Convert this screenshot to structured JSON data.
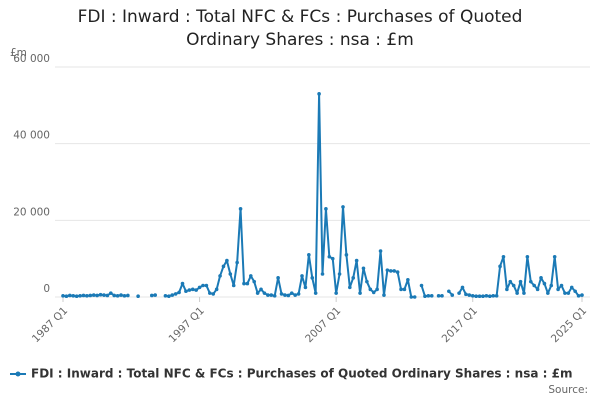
{
  "chart_data": {
    "type": "line",
    "title": "FDI : Inward : Total NFC & FCs : Purchases of Quoted Ordinary Shares : nsa : £m",
    "y_unit": "£m",
    "source": "Source:",
    "categories": [
      "1987 Q1",
      null,
      null,
      null,
      null,
      null,
      null,
      null,
      null,
      null,
      null,
      null,
      null,
      null,
      null,
      null,
      null,
      null,
      null,
      null,
      null,
      null,
      null,
      null,
      null,
      null,
      null,
      null,
      null,
      null,
      null,
      null,
      null,
      null,
      null,
      null,
      null,
      null,
      null,
      null,
      "1997 Q1",
      null,
      null,
      null,
      null,
      null,
      null,
      null,
      null,
      null,
      null,
      null,
      null,
      null,
      null,
      null,
      null,
      null,
      null,
      null,
      null,
      null,
      null,
      null,
      null,
      null,
      null,
      null,
      null,
      null,
      null,
      null,
      null,
      null,
      null,
      null,
      null,
      null,
      null,
      null,
      "2007 Q1",
      null,
      null,
      null,
      null,
      null,
      null,
      null,
      null,
      null,
      null,
      null,
      null,
      null,
      null,
      null,
      null,
      null,
      null,
      null,
      null,
      null,
      null,
      null,
      null,
      null,
      null,
      null,
      null,
      null,
      null,
      null,
      null,
      null,
      null,
      null,
      null,
      null,
      null,
      null,
      "2017 Q1",
      null,
      null,
      null,
      null,
      null,
      null,
      null,
      null,
      null,
      null,
      null,
      null,
      null,
      null,
      null,
      null,
      null,
      null,
      null,
      null,
      null,
      null,
      null,
      null,
      null,
      null,
      null,
      null,
      null,
      null,
      null,
      "2025 Q1"
    ],
    "series": [
      {
        "name": "FDI : Inward : Total NFC & FCs : Purchases of Quoted Ordinary Shares : nsa : £m",
        "color": "#1b7ab6",
        "values": [
          300,
          200,
          400,
          300,
          200,
          300,
          400,
          300,
          400,
          500,
          400,
          600,
          500,
          400,
          1000,
          400,
          300,
          500,
          300,
          400,
          null,
          null,
          200,
          null,
          null,
          null,
          400,
          500,
          null,
          null,
          300,
          200,
          500,
          800,
          1200,
          3500,
          1500,
          1800,
          2000,
          1800,
          2500,
          3000,
          3000,
          1000,
          800,
          2000,
          5500,
          8000,
          9500,
          6000,
          3000,
          9000,
          23000,
          3500,
          3500,
          5500,
          4000,
          1000,
          2000,
          1000,
          500,
          500,
          300,
          5000,
          800,
          500,
          400,
          1000,
          500,
          800,
          5500,
          2500,
          11000,
          5000,
          1000,
          53000,
          6000,
          23000,
          10500,
          10000,
          1000,
          6000,
          23500,
          11000,
          2500,
          5000,
          9500,
          1000,
          7500,
          4000,
          2000,
          1200,
          2000,
          12000,
          500,
          7000,
          6800,
          6800,
          6500,
          2000,
          2000,
          4500,
          0,
          0,
          null,
          3000,
          200,
          300,
          300,
          null,
          300,
          300,
          null,
          1500,
          500,
          null,
          1000,
          2500,
          700,
          500,
          300,
          200,
          200,
          200,
          300,
          200,
          300,
          300,
          8000,
          10500,
          2000,
          4000,
          3000,
          1000,
          4000,
          1000,
          10500,
          4000,
          3000,
          2000,
          5000,
          3500,
          1000,
          3000,
          10500,
          2000,
          3000,
          1000,
          1000,
          2500,
          1500,
          300,
          500
        ]
      }
    ],
    "ylim": [
      0,
      60000
    ],
    "yticks": [
      0,
      {
        "value": 20000,
        "label": "20 000"
      },
      {
        "value": 40000,
        "label": "40 000"
      },
      {
        "value": 60000,
        "label": "60 000"
      }
    ],
    "grid": true,
    "legend": "bottom"
  }
}
